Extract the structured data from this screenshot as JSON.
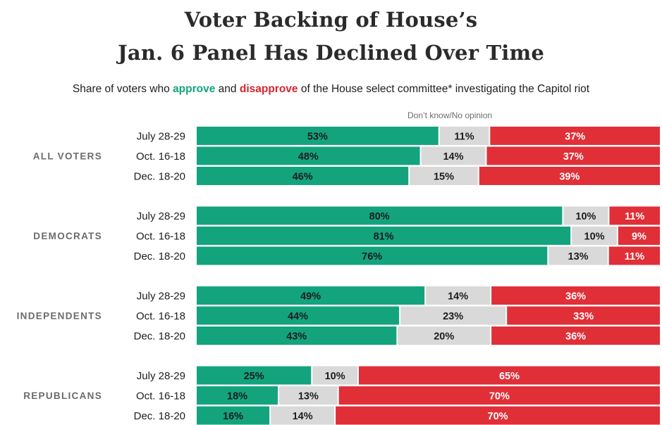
{
  "chart_data": {
    "type": "bar",
    "orientation": "horizontal",
    "stacked": true,
    "title_line1": "Voter Backing of House’s",
    "title_line2": "Jan. 6 Panel Has Declined Over Time",
    "subtitle_before": "Share of voters who ",
    "subtitle_approve": "approve",
    "subtitle_mid": " and ",
    "subtitle_disapprove": "disapprove",
    "subtitle_after": " of the House select committee* investigating the Capitol riot",
    "annotation": "Don’t know/No opinion",
    "segments": [
      {
        "key": "approve",
        "color": "#13a47e",
        "label_color": "#1d1d1d"
      },
      {
        "key": "dk",
        "color": "#d9d9d9",
        "label_color": "#1d1d1d"
      },
      {
        "key": "disapprove",
        "color": "#e12f38",
        "label_color": "#ffffff"
      }
    ],
    "groups": [
      {
        "name": "ALL VOTERS",
        "rows": [
          {
            "date": "July 28-29",
            "approve": 53,
            "dk": 11,
            "disapprove": 37
          },
          {
            "date": "Oct. 16-18",
            "approve": 48,
            "dk": 14,
            "disapprove": 37
          },
          {
            "date": "Dec. 18-20",
            "approve": 46,
            "dk": 15,
            "disapprove": 39
          }
        ]
      },
      {
        "name": "DEMOCRATS",
        "rows": [
          {
            "date": "July 28-29",
            "approve": 80,
            "dk": 10,
            "disapprove": 11
          },
          {
            "date": "Oct. 16-18",
            "approve": 81,
            "dk": 10,
            "disapprove": 9
          },
          {
            "date": "Dec. 18-20",
            "approve": 76,
            "dk": 13,
            "disapprove": 11
          }
        ]
      },
      {
        "name": "INDEPENDENTS",
        "rows": [
          {
            "date": "July 28-29",
            "approve": 49,
            "dk": 14,
            "disapprove": 36
          },
          {
            "date": "Oct. 16-18",
            "approve": 44,
            "dk": 23,
            "disapprove": 33
          },
          {
            "date": "Dec. 18-20",
            "approve": 43,
            "dk": 20,
            "disapprove": 36
          }
        ]
      },
      {
        "name": "REPUBLICANS",
        "rows": [
          {
            "date": "July 28-29",
            "approve": 25,
            "dk": 10,
            "disapprove": 65
          },
          {
            "date": "Oct. 16-18",
            "approve": 18,
            "dk": 13,
            "disapprove": 70
          },
          {
            "date": "Dec. 18-20",
            "approve": 16,
            "dk": 14,
            "disapprove": 70
          }
        ]
      }
    ]
  }
}
